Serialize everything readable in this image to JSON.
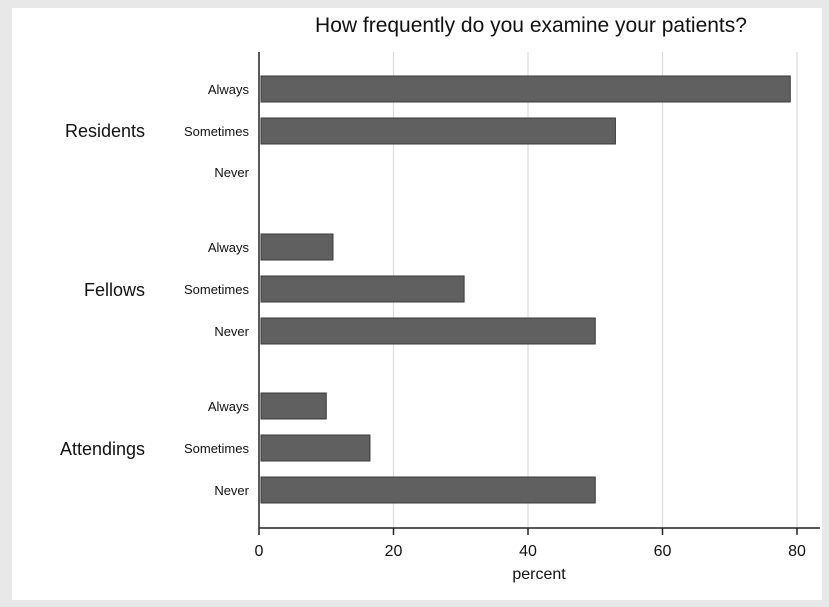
{
  "chart_data": {
    "type": "bar",
    "orientation": "horizontal",
    "title": "How frequently do you examine your patients?",
    "xlabel": "percent",
    "ylabel": "",
    "xlim": [
      0,
      80
    ],
    "xticks": [
      0,
      20,
      40,
      60,
      80
    ],
    "grid": true,
    "groups": [
      {
        "name": "Residents",
        "categories": [
          "Always",
          "Sometimes",
          "Never"
        ],
        "values": [
          79,
          53,
          0
        ]
      },
      {
        "name": "Fellows",
        "categories": [
          "Always",
          "Sometimes",
          "Never"
        ],
        "values": [
          11,
          30.5,
          50
        ]
      },
      {
        "name": "Attendings",
        "categories": [
          "Always",
          "Sometimes",
          "Never"
        ],
        "values": [
          10,
          16.5,
          50
        ]
      }
    ],
    "bar_color": "#606060"
  }
}
